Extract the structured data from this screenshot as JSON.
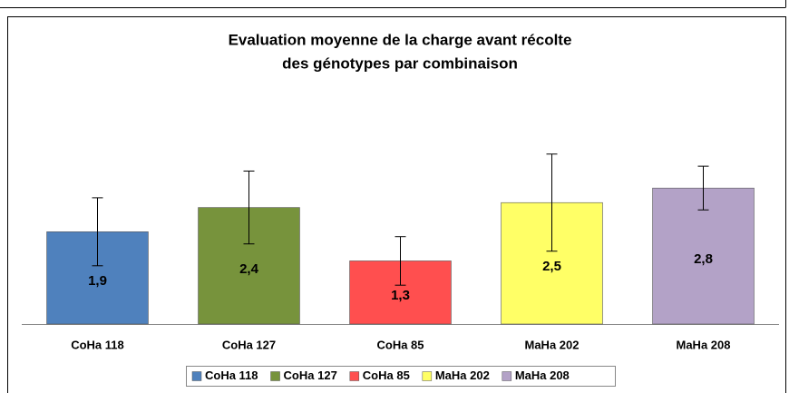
{
  "chart_data": {
    "type": "bar",
    "title": [
      "Evaluation moyenne de la charge avant récolte",
      "des génotypes par combinaison"
    ],
    "categories": [
      "CoHa 118",
      "CoHa 127",
      "CoHa 85",
      "MaHa 202",
      "MaHa 208"
    ],
    "values": [
      1.9,
      2.4,
      1.3,
      2.5,
      2.8
    ],
    "value_labels": [
      "1,9",
      "2,4",
      "1,3",
      "2,5",
      "2,8"
    ],
    "errors": [
      0.7,
      0.75,
      0.5,
      1.0,
      0.45
    ],
    "colors": [
      "#4f81bd",
      "#77933c",
      "#ff4f4f",
      "#ffff66",
      "#b3a2c7"
    ],
    "ylim": [
      0,
      4
    ],
    "legend": "bottom"
  }
}
